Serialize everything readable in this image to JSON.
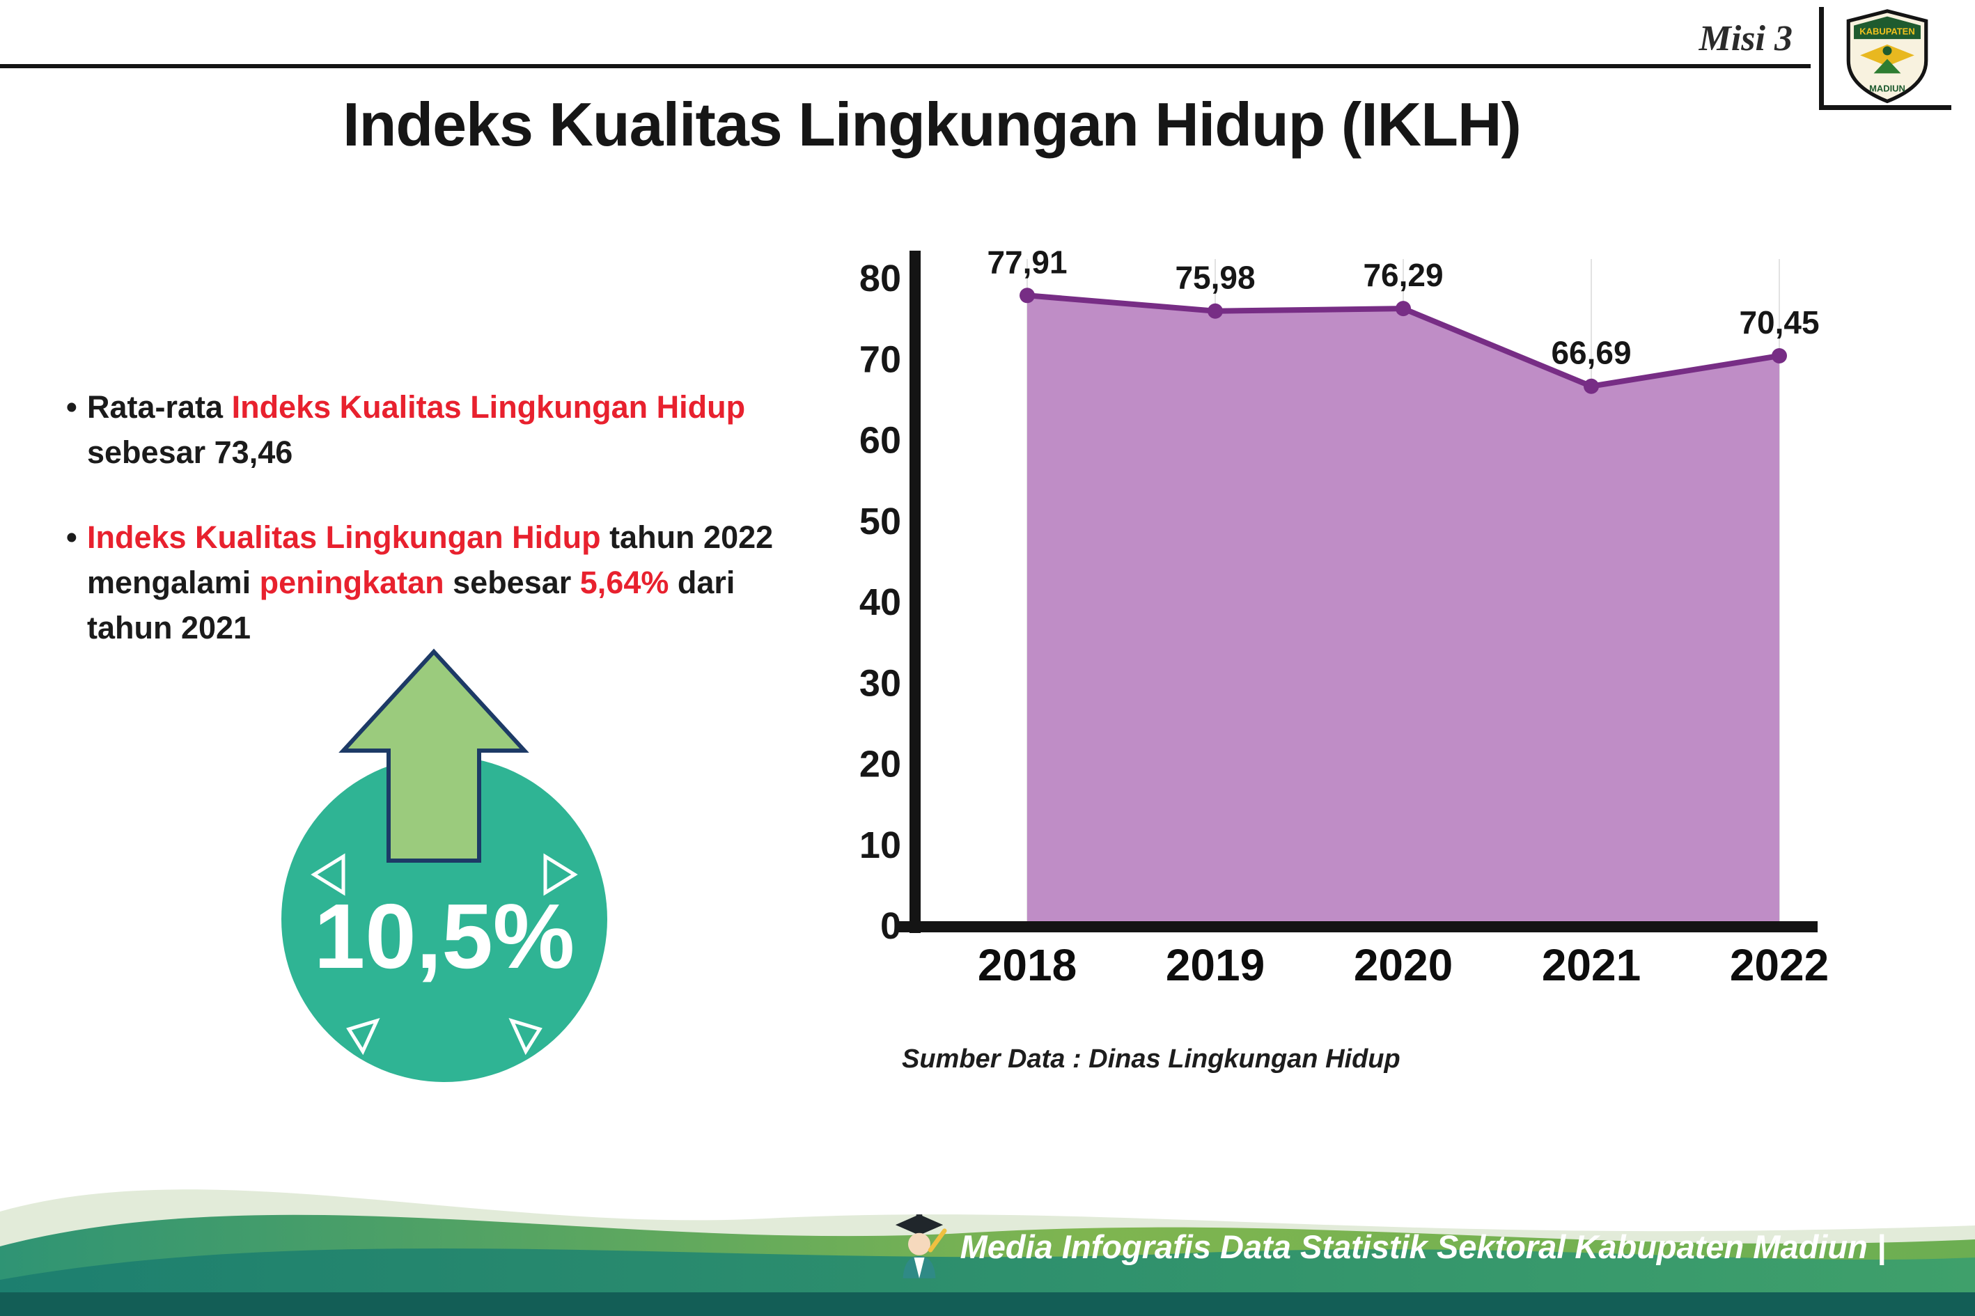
{
  "header": {
    "misi_label": "Misi 3",
    "title": "Indeks Kualitas Lingkungan Hidup (IKLH)",
    "logo_top": "KABUPATEN",
    "logo_bottom": "MADIUN"
  },
  "bullets": {
    "marker": "•",
    "b1": {
      "t1": "Rata-rata ",
      "h1": "Indeks Kualitas Lingkungan Hidup",
      "t2": " sebesar 73,46"
    },
    "b2": {
      "h1": "Indeks Kualitas Lingkungan Hidup",
      "t1": " tahun 2022 mengalami ",
      "h2": "peningkatan",
      "t2": " sebesar ",
      "h3": "5,64%",
      "t3": " dari tahun 2021"
    }
  },
  "badge": {
    "value": "10,5%"
  },
  "chart_data": {
    "type": "area",
    "title": "Indeks Kualitas Lingkungan Hidup (IKLH)",
    "categories": [
      "2018",
      "2019",
      "2020",
      "2021",
      "2022"
    ],
    "values": [
      77.91,
      75.98,
      76.29,
      66.69,
      70.45
    ],
    "labels": [
      "77,91",
      "75,98",
      "76,29",
      "66,69",
      "70,45"
    ],
    "ylim": [
      0,
      80
    ],
    "yticks": [
      0,
      10,
      20,
      30,
      40,
      50,
      60,
      70,
      80
    ],
    "grid": "vertical-light",
    "legend": "none",
    "area_color": "#bf8dc6",
    "line_color": "#772d85",
    "source": "Sumber Data : Dinas Lingkungan Hidup"
  },
  "footer": {
    "caption": "Media Infografis Data Statistik Sektoral Kabupaten Madiun |"
  },
  "colors": {
    "accent_red": "#e8212e",
    "badge_teal": "#2fb494",
    "arrow_green": "#9bcb7d",
    "footer_dark_teal": "#135e56"
  }
}
